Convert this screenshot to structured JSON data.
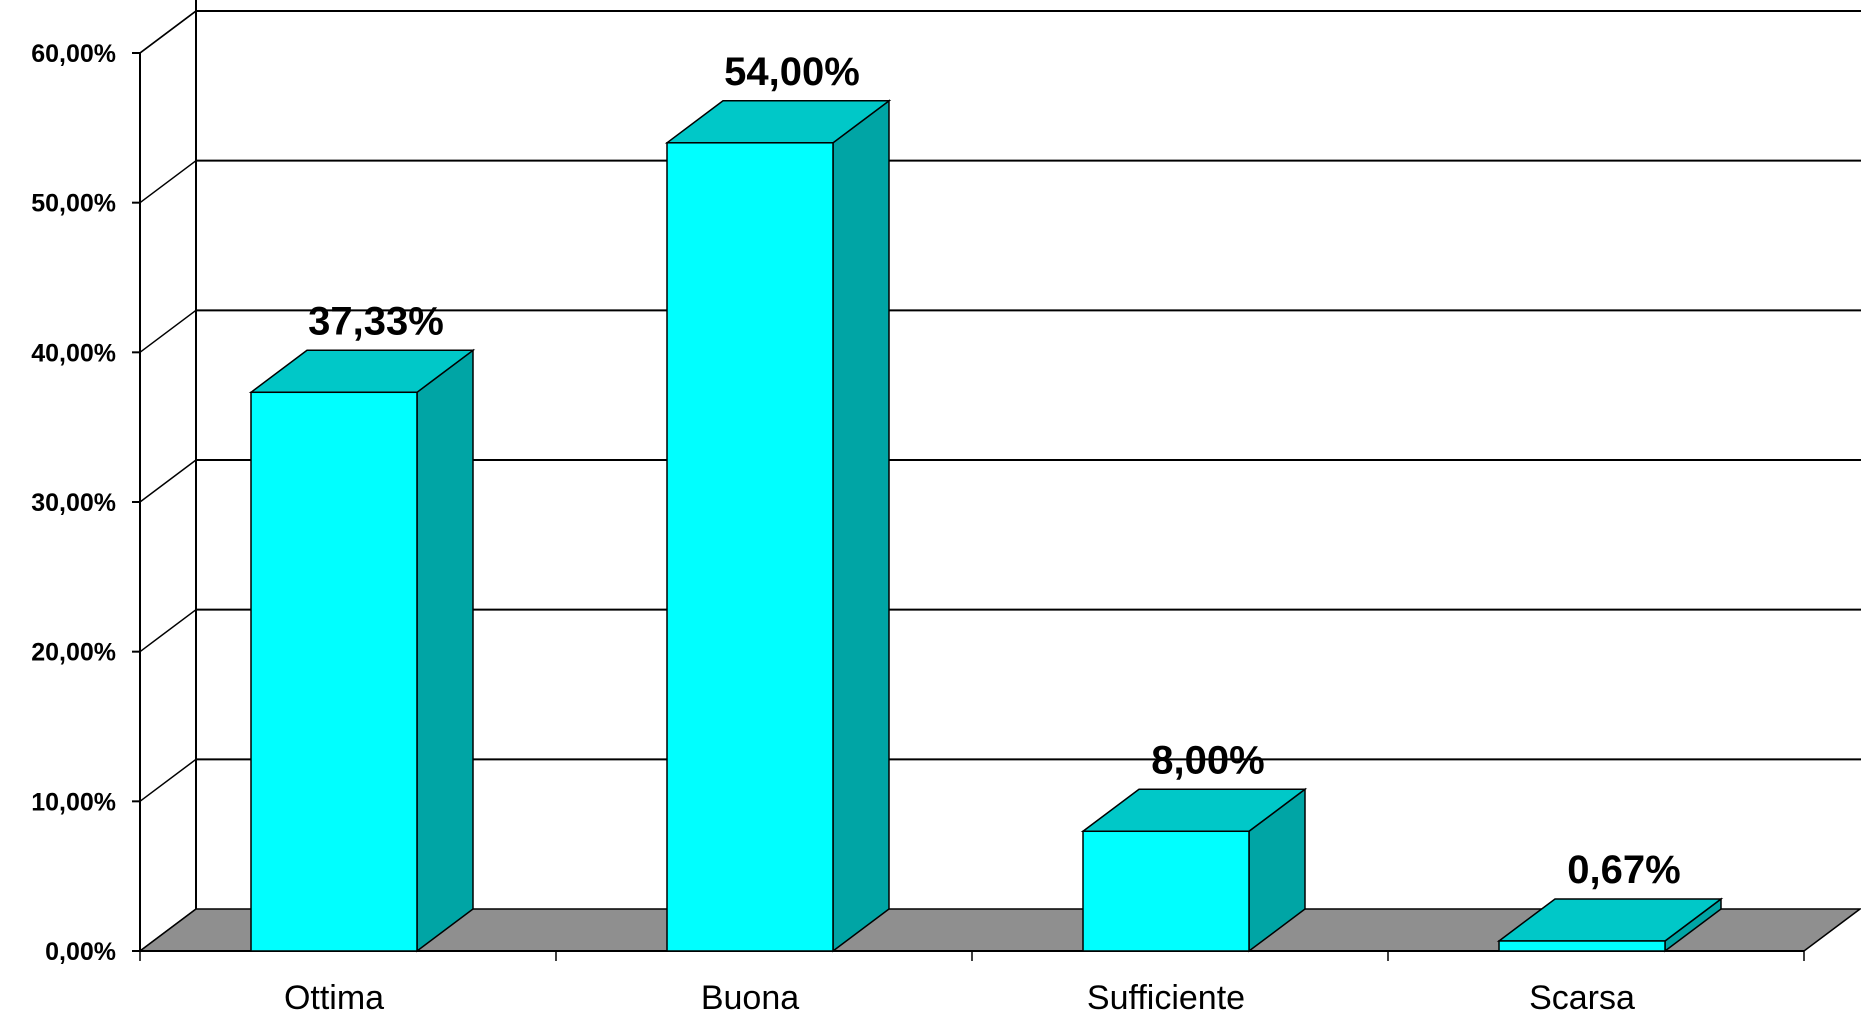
{
  "chart_data": {
    "type": "bar",
    "style": "3d-column",
    "categories": [
      "Ottima",
      "Buona",
      "Sufficiente",
      "Scarsa"
    ],
    "values": [
      37.33,
      54.0,
      8.0,
      0.67
    ],
    "data_labels": [
      "37,33%",
      "54,00%",
      "8,00%",
      "0,67%"
    ],
    "y_ticks": [
      0,
      10,
      20,
      30,
      40,
      50,
      60
    ],
    "y_tick_labels": [
      "0,00%",
      "10,00%",
      "20,00%",
      "30,00%",
      "40,00%",
      "50,00%",
      "60,00%"
    ],
    "ylim": [
      0,
      60
    ],
    "title": "",
    "xlabel": "",
    "ylabel": "",
    "grid": true,
    "legend": "none",
    "colors": {
      "bar_front": "#00FFFF",
      "bar_top": "#00C8C8",
      "bar_side": "#00A5A5",
      "floor": "#8F8F8F",
      "gridline": "#000000"
    }
  }
}
